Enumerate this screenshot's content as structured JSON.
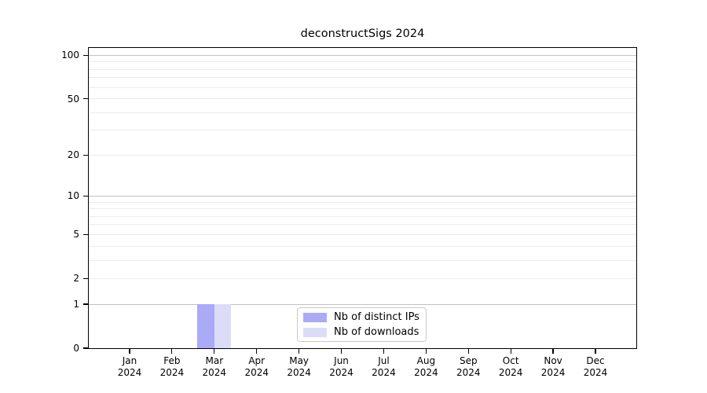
{
  "title": "deconstructSigs 2024",
  "legend": {
    "items": [
      {
        "label": "Nb of distinct IPs",
        "color": "#aaaaf6"
      },
      {
        "label": "Nb of downloads",
        "color": "#dcdcf8"
      }
    ]
  },
  "chart_data": {
    "type": "bar",
    "title": "deconstructSigs 2024",
    "categories": [
      "Jan 2024",
      "Feb 2024",
      "Mar 2024",
      "Apr 2024",
      "May 2024",
      "Jun 2024",
      "Jul 2024",
      "Aug 2024",
      "Sep 2024",
      "Oct 2024",
      "Nov 2024",
      "Dec 2024"
    ],
    "series": [
      {
        "name": "Nb of distinct IPs",
        "color": "#aaaaf6",
        "values": [
          0,
          0,
          1,
          0,
          0,
          0,
          0,
          0,
          0,
          0,
          0,
          0
        ]
      },
      {
        "name": "Nb of downloads",
        "color": "#dcdcf8",
        "values": [
          0,
          0,
          1,
          0,
          0,
          0,
          0,
          0,
          0,
          0,
          0,
          0
        ]
      }
    ],
    "y_axis": {
      "scale": "log1p",
      "max": 112.5,
      "ticks": [
        0,
        1,
        2,
        5,
        10,
        20,
        50,
        100
      ],
      "major_gridlines": [
        1,
        10,
        100
      ],
      "minor_gridlines": [
        2,
        3,
        4,
        5,
        6,
        7,
        8,
        9,
        20,
        30,
        40,
        50,
        60,
        70,
        80,
        90
      ]
    },
    "grid": true,
    "legend_position": "bottom-center"
  },
  "colors": {
    "background": "#ffffff",
    "axis": "#000000",
    "grid_major": "#c2c2c2",
    "grid_minor": "#ececec",
    "legend_border": "#c9c9c9",
    "text": "#000000"
  }
}
